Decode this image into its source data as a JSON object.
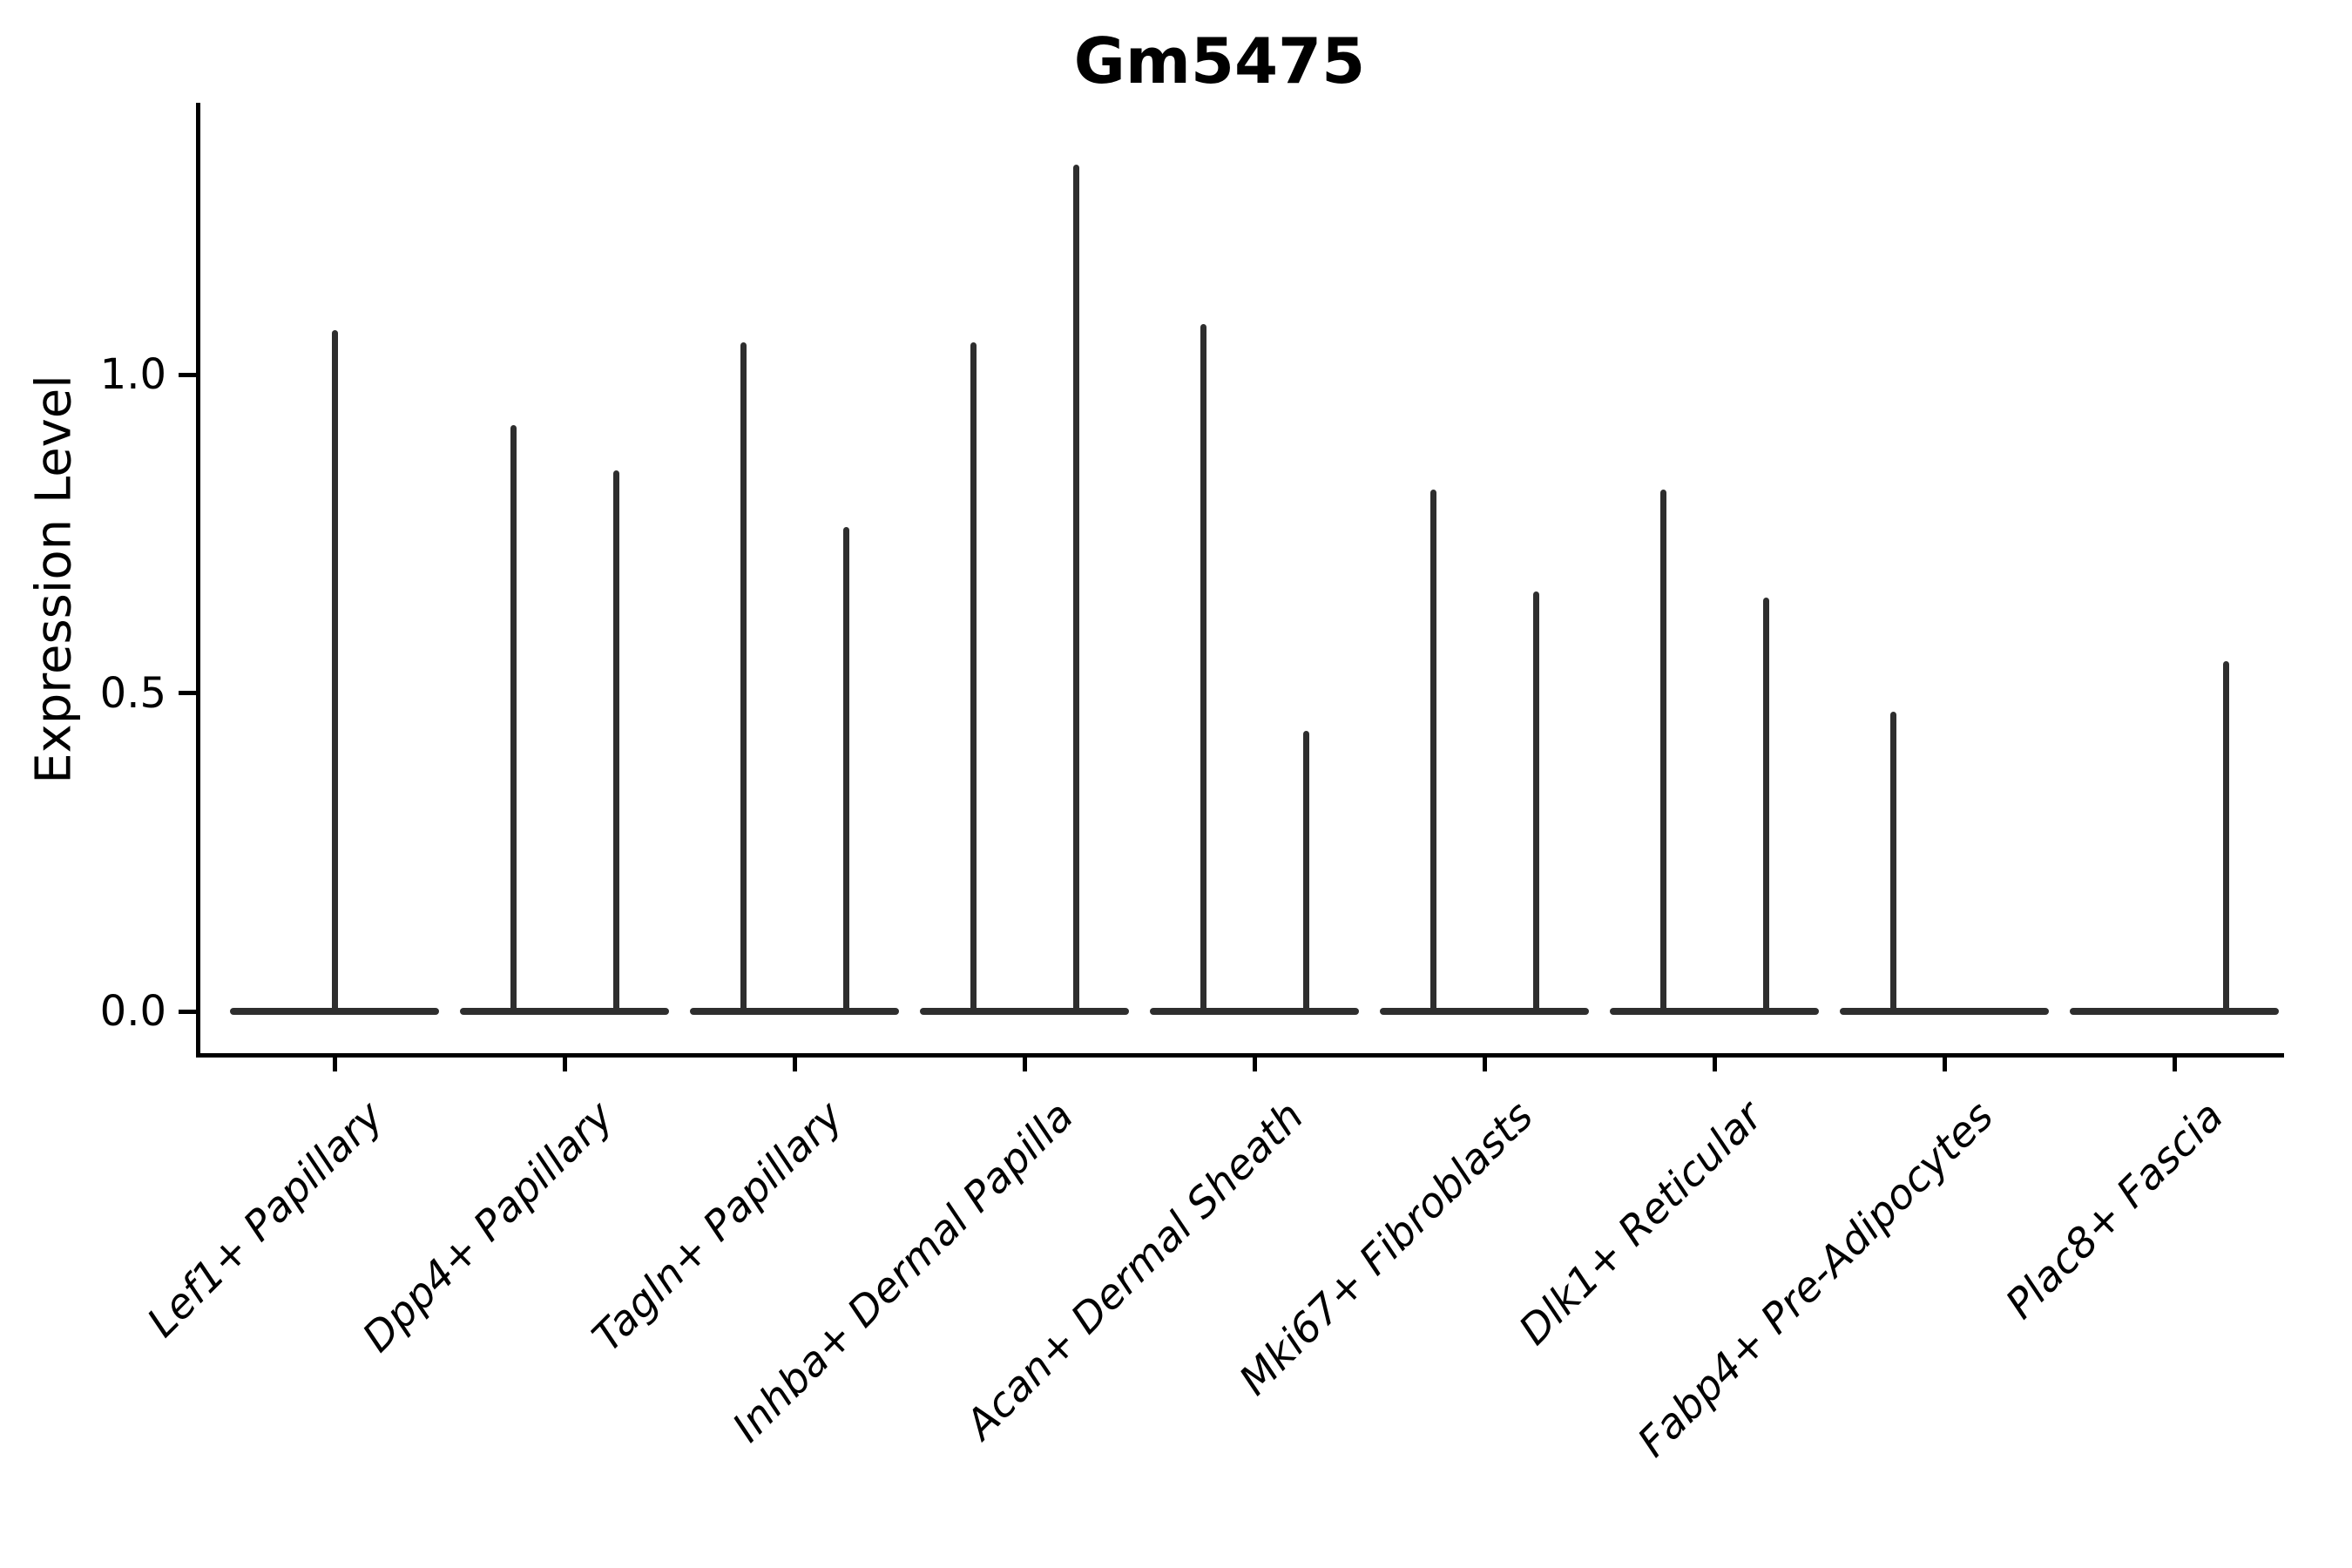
{
  "chart_data": {
    "type": "violin",
    "title": "Gm5475",
    "ylabel": "Expression Level",
    "xlabel": "",
    "yticks": [
      "0.0",
      "0.5",
      "1.0"
    ],
    "ytick_values": [
      0.0,
      0.5,
      1.0
    ],
    "ylim": [
      -0.07,
      1.43
    ],
    "grid": false,
    "legend": "none",
    "categories": [
      {
        "label": "Lef1+ Papillary",
        "spikes": [
          {
            "pos": "center",
            "value": 1.07
          }
        ]
      },
      {
        "label": "Dpp4+ Papillary",
        "spikes": [
          {
            "pos": "left",
            "value": 0.92
          },
          {
            "pos": "right",
            "value": 0.85
          }
        ]
      },
      {
        "label": "Tagln+ Papillary",
        "spikes": [
          {
            "pos": "left",
            "value": 1.05
          },
          {
            "pos": "right",
            "value": 0.76
          }
        ]
      },
      {
        "label": "Inhba+ Dermal Papilla",
        "spikes": [
          {
            "pos": "left",
            "value": 1.05
          },
          {
            "pos": "right",
            "value": 1.33
          }
        ]
      },
      {
        "label": "Acan+ Dermal Sheath",
        "spikes": [
          {
            "pos": "left",
            "value": 1.08
          },
          {
            "pos": "right",
            "value": 0.44
          }
        ]
      },
      {
        "label": "Mki67+ Fibroblasts",
        "spikes": [
          {
            "pos": "left",
            "value": 0.82
          },
          {
            "pos": "right",
            "value": 0.66
          }
        ]
      },
      {
        "label": "Dlk1+ Reticular",
        "spikes": [
          {
            "pos": "left",
            "value": 0.82
          },
          {
            "pos": "right",
            "value": 0.65
          }
        ]
      },
      {
        "label": "Fabp4+ Pre-Adipocytes",
        "spikes": [
          {
            "pos": "left",
            "value": 0.47
          }
        ]
      },
      {
        "label": "Plac8+ Fascia",
        "spikes": [
          {
            "pos": "right",
            "value": 0.55
          }
        ]
      }
    ],
    "colors": {
      "violin_line": "#2e2e2e",
      "axis": "#000000",
      "text": "#000000",
      "background": "#ffffff"
    }
  }
}
